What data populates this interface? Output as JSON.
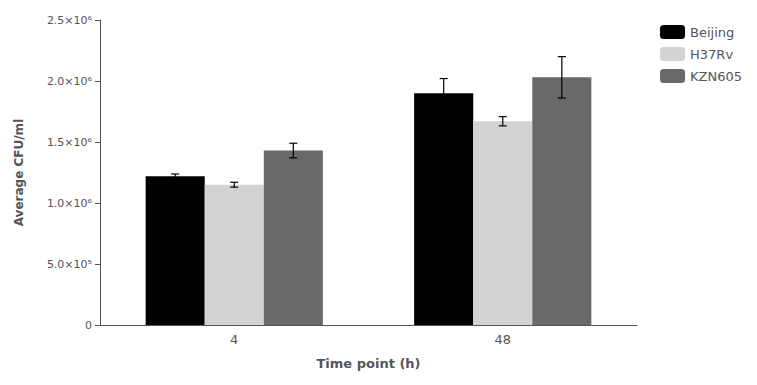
{
  "chart_data": {
    "type": "bar",
    "categories": [
      "4",
      "48"
    ],
    "series": [
      {
        "name": "Beijing",
        "color": "#000000",
        "values": [
          1220000,
          1900000
        ],
        "errors": [
          18000,
          120000
        ]
      },
      {
        "name": "H37Rv",
        "color": "#d3d3d3",
        "values": [
          1150000,
          1670000
        ],
        "errors": [
          20000,
          38000
        ]
      },
      {
        "name": "KZN605",
        "color": "#696969",
        "values": [
          1430000,
          2030000
        ],
        "errors": [
          60000,
          170000
        ]
      }
    ],
    "xlabel": "Time point (h)",
    "ylabel": "Average CFU/ml",
    "ylim": [
      0,
      2500000
    ],
    "yticks": [
      0,
      {
        "value": 500000,
        "label": "5.0×10⁵"
      },
      {
        "value": 1000000,
        "label": "1.0×10⁶"
      },
      {
        "value": 1500000,
        "label": "1.5×10⁶"
      },
      {
        "value": 2000000,
        "label": "2.0×10⁶"
      },
      {
        "value": 2500000,
        "label": "2.5×10⁶"
      }
    ],
    "grid": false,
    "legend": "right"
  }
}
